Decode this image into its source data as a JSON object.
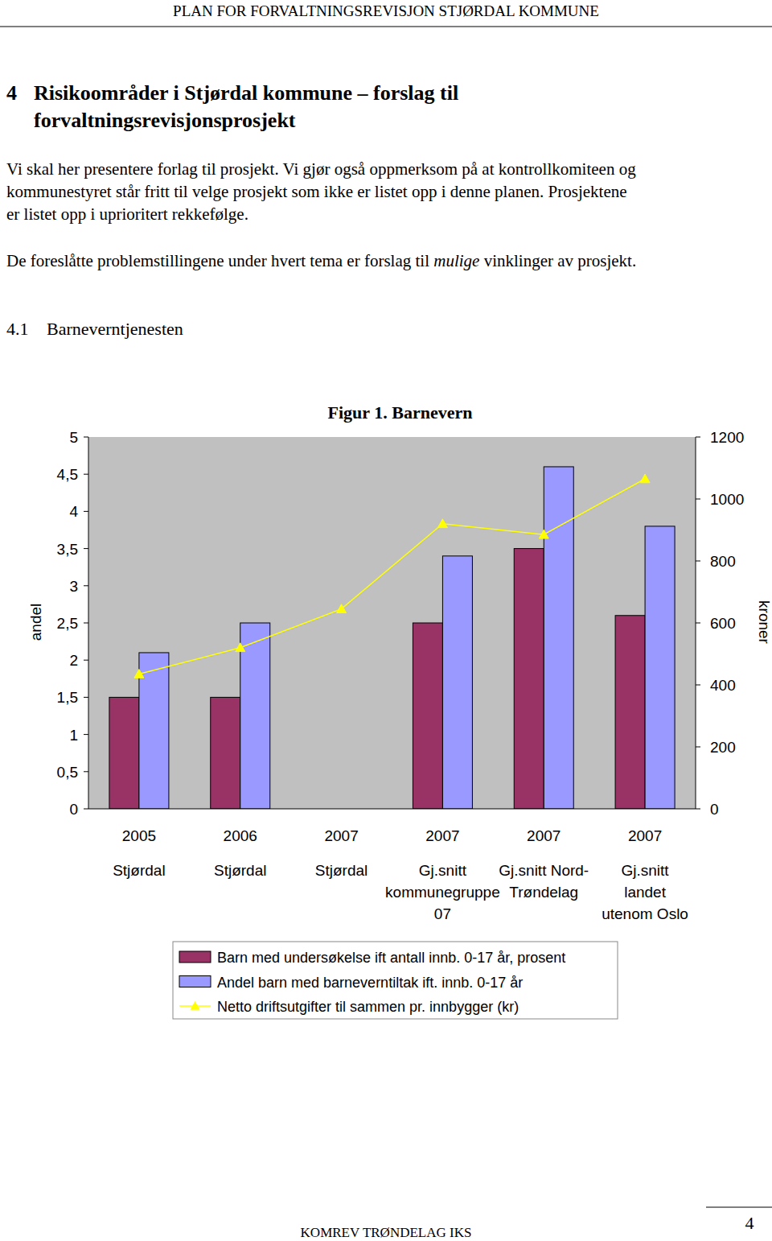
{
  "header": {
    "running_title": "Plan for forvaltningsrevisjon Stjørdal kommune"
  },
  "heading": {
    "number": "4",
    "lines": [
      "Risikoområder i Stjørdal kommune – forslag til",
      "forvaltningsrevisjonsprosjekt"
    ]
  },
  "paragraph_1": [
    "Vi skal her presentere forlag til prosjekt. Vi gjør også oppmerksom på at kontrollkomiteen og",
    "kommunestyret står fritt til velge prosjekt som ikke er listet opp i denne planen. Prosjektene",
    "er listet opp i uprioritert rekkefølge."
  ],
  "paragraph_2": [
    "De foreslåtte problemstillingene under hvert tema er forslag til ",
    "mulige",
    " vinklinger av prosjekt."
  ],
  "section": {
    "number": "4.1",
    "title": "Barneverntjenesten"
  },
  "chart_data": {
    "type": "bar",
    "title": "Figur 1. Barnevern",
    "y_label": "andel",
    "y2_label": "kroner",
    "categories": [
      "2005\nStjørdal",
      "2006\nStjørdal",
      "2007\nStjørdal",
      "2007\nGj.snitt\nkommunegruppe\n07",
      "2007\nGj.snitt Nord-\nTrøndelag",
      "2007\nGj.snitt\nlandet\nutenom Oslo"
    ],
    "series": [
      {
        "name": "Barn med undersøkelse ift antall innb. 0-17 år, prosent",
        "type": "bar",
        "color": "#993366",
        "values": [
          1.5,
          1.5,
          null,
          2.5,
          3.5,
          2.6
        ]
      },
      {
        "name": "Andel barn med barneverntiltak ift. innb. 0-17 år",
        "type": "bar",
        "color": "#9999ff",
        "values": [
          2.1,
          2.5,
          null,
          3.4,
          4.6,
          3.8
        ]
      },
      {
        "name": "Netto driftsutgifter til sammen pr. innbygger (kr)",
        "type": "line",
        "axis": "y2",
        "color": "#ffff00",
        "marker": "triangle",
        "values": [
          435,
          520,
          645,
          920,
          885,
          1065
        ]
      }
    ],
    "ylim": [
      0,
      5
    ],
    "yticks": [
      0,
      {
        "value": 0.5,
        "label": "0,5"
      },
      1,
      {
        "value": 1.5,
        "label": "1,5"
      },
      2,
      {
        "value": 2.5,
        "label": "2,5"
      },
      3,
      {
        "value": 3.5,
        "label": "3,5"
      },
      4,
      {
        "value": 4.5,
        "label": "4,5"
      },
      5
    ],
    "y2lim": [
      0,
      1200
    ],
    "y2ticks": [
      0,
      200,
      400,
      600,
      800,
      1000,
      1200
    ],
    "grid": false,
    "legend": "bottom"
  },
  "footer": {
    "organisation": "KomRev Trøndelag IKS",
    "page_number": "4"
  }
}
